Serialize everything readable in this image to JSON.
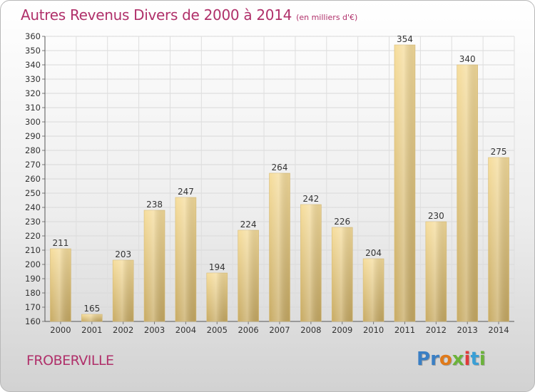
{
  "title": "Autres Revenus Divers de 2000 à 2014",
  "unit_note": "(en milliers d'€)",
  "location": "FROBERVILLE",
  "brand": {
    "letters": [
      "P",
      "r",
      "o",
      "x",
      "i",
      "t",
      "i"
    ],
    "colors": [
      "#3a7fc4",
      "#3a7fc4",
      "#e07a1a",
      "#6bb33a",
      "#e03a3a",
      "#3a9fd6",
      "#6bb33a"
    ]
  },
  "colors": {
    "bar_light": "#f5dc9a",
    "bar_dark": "#c9ac66",
    "text_accent": "#b0306a"
  },
  "chart_data": {
    "type": "bar",
    "title": "Autres Revenus Divers de 2000 à 2014",
    "subtitle": "(en milliers d'€)",
    "xlabel": "",
    "ylabel": "",
    "categories": [
      "2000",
      "2001",
      "2002",
      "2003",
      "2004",
      "2005",
      "2006",
      "2007",
      "2008",
      "2009",
      "2010",
      "2011",
      "2012",
      "2013",
      "2014"
    ],
    "values": [
      211,
      165,
      203,
      238,
      247,
      194,
      224,
      264,
      242,
      226,
      204,
      354,
      230,
      340,
      275
    ],
    "ylim": [
      160,
      360
    ],
    "yticks": [
      160,
      170,
      180,
      190,
      200,
      210,
      220,
      230,
      240,
      250,
      260,
      270,
      280,
      290,
      300,
      310,
      320,
      330,
      340,
      350,
      360
    ],
    "grid": true,
    "legend": "none"
  }
}
